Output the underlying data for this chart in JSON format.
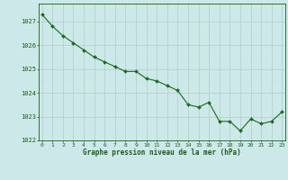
{
  "x": [
    0,
    1,
    2,
    3,
    4,
    5,
    6,
    7,
    8,
    9,
    10,
    11,
    12,
    13,
    14,
    15,
    16,
    17,
    18,
    19,
    20,
    21,
    22,
    23
  ],
  "y": [
    1027.3,
    1026.8,
    1026.4,
    1026.1,
    1025.8,
    1025.5,
    1025.3,
    1025.1,
    1024.9,
    1024.9,
    1024.6,
    1024.5,
    1024.3,
    1024.1,
    1023.5,
    1023.4,
    1023.6,
    1022.8,
    1022.8,
    1022.4,
    1022.9,
    1022.7,
    1022.8,
    1023.2
  ],
  "line_color": "#1a6b1a",
  "marker_color": "#1a6b1a",
  "bg_color": "#cce8e8",
  "grid_color": "#b8d0d0",
  "xlabel": "Graphe pression niveau de la mer (hPa)",
  "xlabel_color": "#1a5c1a",
  "tick_label_color": "#1a5c1a",
  "ylim": [
    1022.0,
    1027.75
  ],
  "yticks": [
    1022,
    1023,
    1024,
    1025,
    1026,
    1027
  ],
  "xticks": [
    0,
    1,
    2,
    3,
    4,
    5,
    6,
    7,
    8,
    9,
    10,
    11,
    12,
    13,
    14,
    15,
    16,
    17,
    18,
    19,
    20,
    21,
    22,
    23
  ],
  "xlim": [
    -0.3,
    23.3
  ]
}
